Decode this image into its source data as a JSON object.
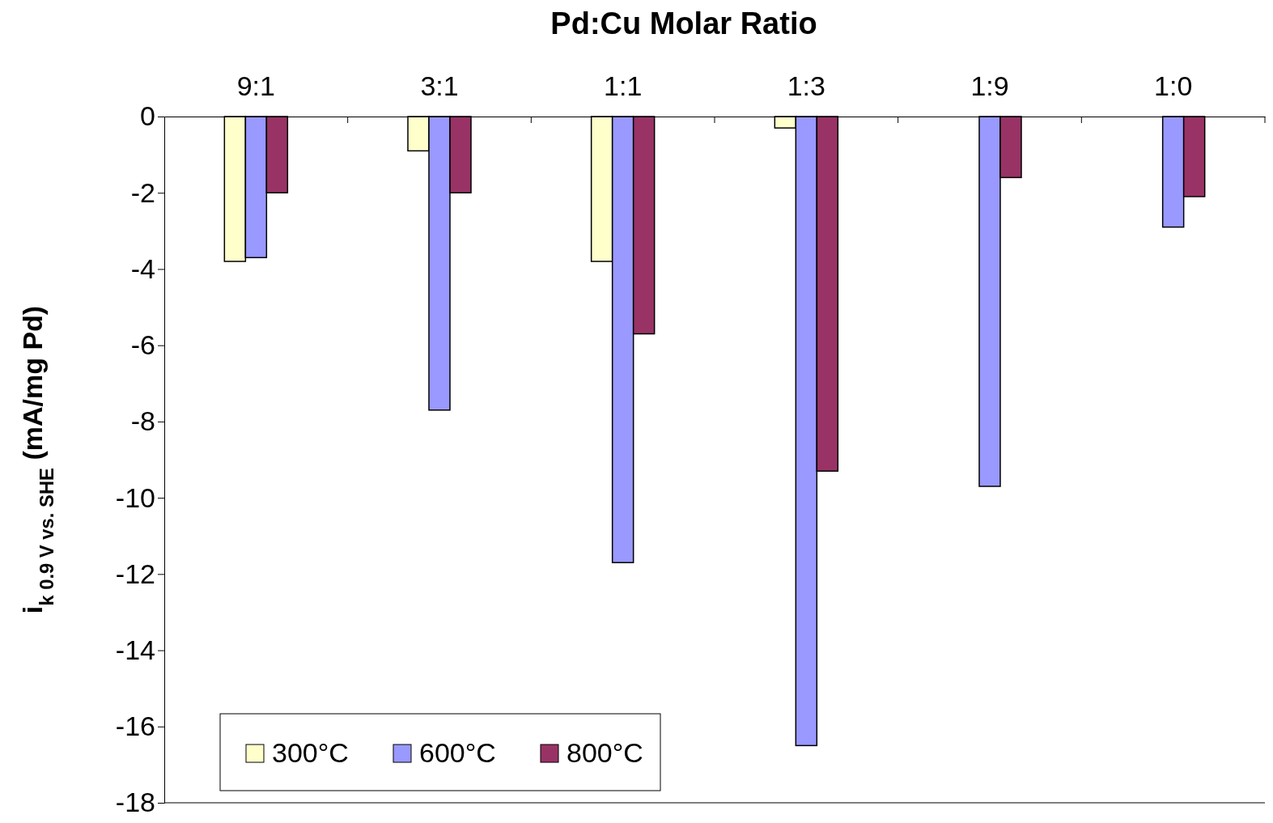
{
  "chart_data": {
    "type": "bar",
    "xlabel": "Pd:Cu Molar Ratio",
    "ylabel": "i$_{k 0.9 V vs. SHE}$ (mA/mg Pd)",
    "categories": [
      "9:1",
      "3:1",
      "1:1",
      "1:3",
      "1:9",
      "1:0"
    ],
    "series": [
      {
        "name": "300°C",
        "color": "#ffffcc",
        "values": [
          -3.8,
          -0.9,
          -3.8,
          -0.3,
          null,
          null
        ]
      },
      {
        "name": "600°C",
        "color": "#9999ff",
        "values": [
          -3.7,
          -7.7,
          -11.7,
          -16.5,
          -9.7,
          -2.9
        ]
      },
      {
        "name": "800°C",
        "color": "#993366",
        "values": [
          -2.0,
          -2.0,
          -5.7,
          -9.3,
          -1.6,
          -2.1
        ]
      }
    ],
    "ylim": [
      -18,
      0
    ],
    "yticks": [
      0,
      -2,
      -4,
      -6,
      -8,
      -10,
      -12,
      -14,
      -16,
      -18
    ],
    "grid": false,
    "legend": "bottom left"
  }
}
